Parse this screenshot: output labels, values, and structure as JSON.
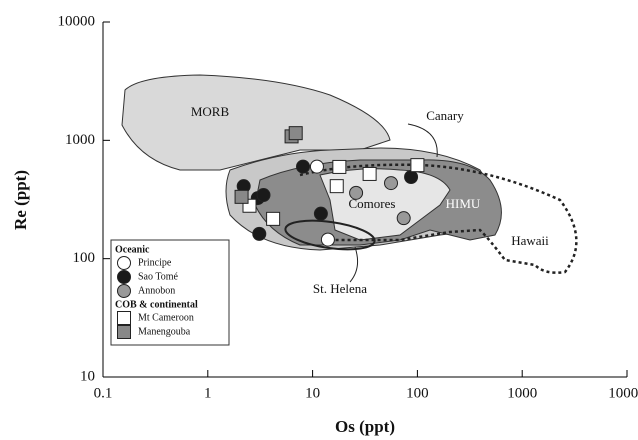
{
  "chart_data": {
    "type": "scatter",
    "x_label": "Os (ppt)",
    "y_label": "Re (ppt)",
    "xscale": "log",
    "yscale": "log",
    "xlim": [
      0.1,
      10000
    ],
    "ylim": [
      10,
      10000
    ],
    "xticks": [
      0.1,
      1,
      10,
      100,
      1000,
      10000
    ],
    "yticks": [
      10,
      100,
      1000,
      10000
    ],
    "legend_groups": [
      {
        "title": "Oceanic"
      },
      {
        "title": "COB & continental"
      }
    ],
    "annotations": [
      "MORB",
      "Canary",
      "Comores",
      "HIMU",
      "Hawaii",
      "St. Helena"
    ],
    "series": [
      {
        "name": "Principe",
        "color": "#ffffff",
        "marker": "circle",
        "x": [
          11,
          14
        ],
        "y": [
          600,
          145
        ]
      },
      {
        "name": "Sao Tomé",
        "color": "#1a1a1a",
        "marker": "circle",
        "x": [
          8.1,
          2.2,
          3.0,
          3.4,
          12,
          3.1,
          87
        ],
        "y": [
          600,
          410,
          325,
          345,
          240,
          162,
          490
        ]
      },
      {
        "name": "Annobon",
        "color": "#999999",
        "marker": "circle",
        "x": [
          26,
          56,
          74
        ],
        "y": [
          360,
          435,
          220
        ]
      },
      {
        "name": "Mt Cameroon",
        "color": "#ffffff",
        "marker": "square",
        "x": [
          2.5,
          4.2,
          17,
          18,
          35,
          100
        ],
        "y": [
          280,
          217,
          410,
          596,
          520,
          617
        ]
      },
      {
        "name": "Manengouba",
        "color": "#888888",
        "marker": "square",
        "x": [
          6.3,
          6.9,
          2.1
        ],
        "y": [
          1080,
          1150,
          333
        ]
      }
    ]
  }
}
